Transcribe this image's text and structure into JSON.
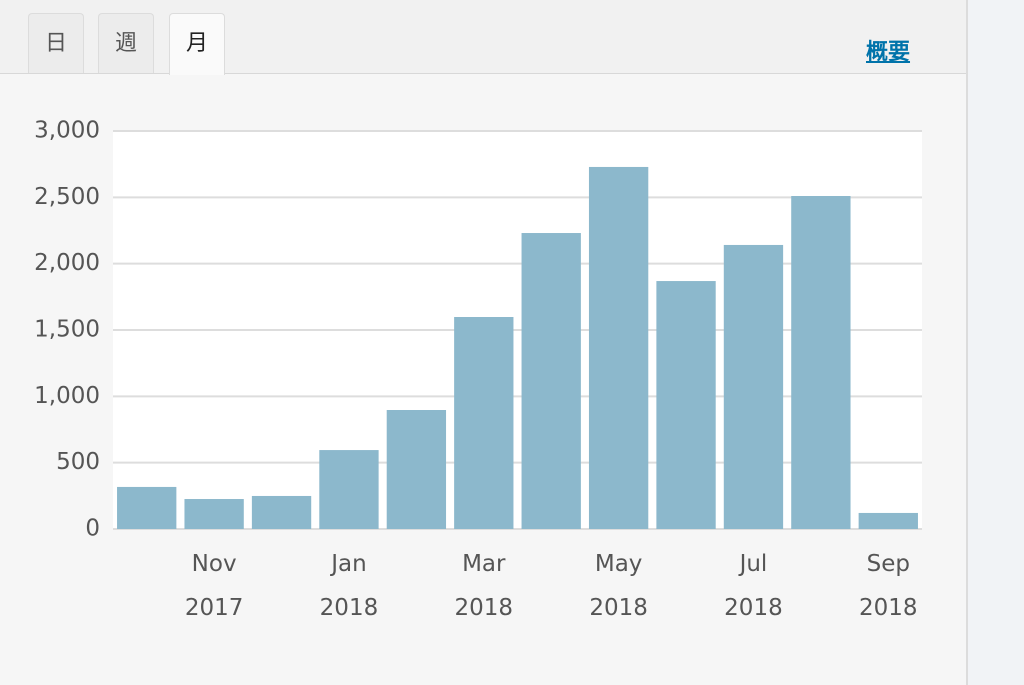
{
  "tabs": [
    "日",
    "週",
    "月"
  ],
  "link": "概要",
  "chart_data": {
    "type": "bar",
    "categories": [
      null,
      "Nov 2017",
      null,
      "Jan 2018",
      null,
      "Mar 2018",
      null,
      "May 2018",
      null,
      "Jul 2018",
      null,
      "Sep 2018"
    ],
    "values": [
      317,
      226,
      249,
      595,
      897,
      1598,
      2231,
      2729,
      1869,
      2141,
      2510,
      121
    ],
    "color": "#8cb8cc",
    "ylim": [
      0,
      3000
    ],
    "yticks": [
      0,
      500,
      {
        "value": 1000,
        "label": "1,000"
      },
      {
        "value": 1500,
        "label": "1,500"
      },
      {
        "value": 2000,
        "label": "2,000"
      },
      {
        "value": 2500,
        "label": "2,500"
      },
      {
        "value": 3000,
        "label": "3,000"
      }
    ],
    "grid": true
  }
}
